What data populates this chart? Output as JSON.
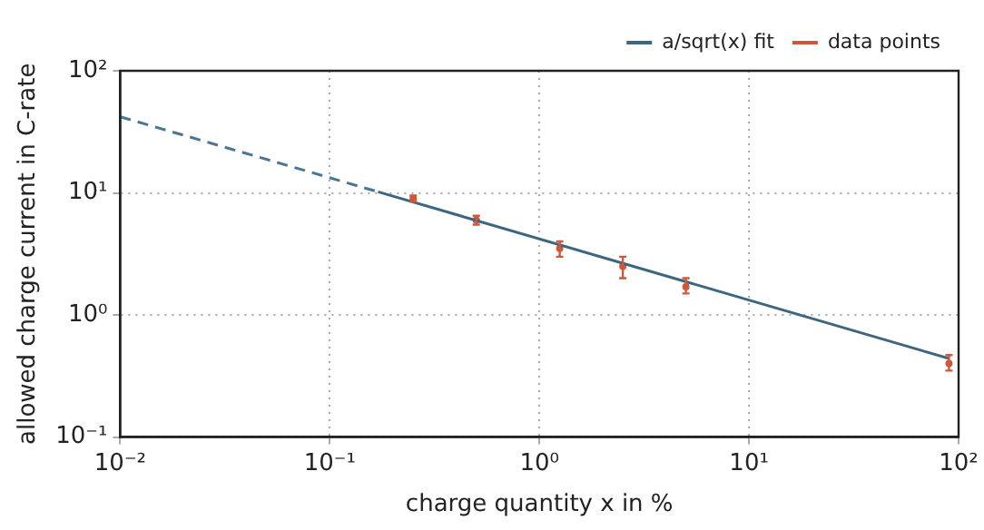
{
  "chart_data": {
    "type": "scatter",
    "xlabel": "charge quantity x in %",
    "ylabel": "allowed charge current in C-rate",
    "log": "xy",
    "grid": true,
    "legend": "top right",
    "xlim": [
      0.01,
      100
    ],
    "ylim": [
      0.1,
      100
    ],
    "xticks": [
      {
        "value": 0.01,
        "label": "10⁻²"
      },
      {
        "value": 0.1,
        "label": "10⁻¹"
      },
      {
        "value": 1,
        "label": "10⁰"
      },
      {
        "value": 10,
        "label": "10¹"
      },
      {
        "value": 100,
        "label": "10²"
      }
    ],
    "yticks": [
      {
        "value": 0.1,
        "label": "10⁻¹"
      },
      {
        "value": 1,
        "label": "10⁰"
      },
      {
        "value": 10,
        "label": "10¹"
      },
      {
        "value": 100,
        "label": "10²"
      }
    ],
    "series": [
      {
        "type": "line",
        "color": "#4a7694",
        "line_style": "dashed",
        "x": [
          0.01,
          0.17
        ],
        "values": [
          42,
          10.2
        ]
      },
      {
        "name": "a/sqrt(x) fit",
        "type": "line",
        "color": "#3d6680",
        "line_style": "solid",
        "x": [
          0.17,
          90
        ],
        "values": [
          10.2,
          0.44
        ]
      },
      {
        "name": "data points",
        "color": "#d0573a",
        "x": [
          0.25,
          0.5,
          1.25,
          2.5,
          5,
          90
        ],
        "values": [
          9,
          6,
          3.5,
          2.5,
          1.7,
          0.4
        ],
        "errors": [
          [
            8.5,
            9.5
          ],
          [
            5.5,
            6.5
          ],
          [
            3.0,
            4.0
          ],
          [
            2.0,
            3.0
          ],
          [
            1.5,
            2.0
          ],
          [
            0.35,
            0.47
          ]
        ]
      }
    ]
  }
}
